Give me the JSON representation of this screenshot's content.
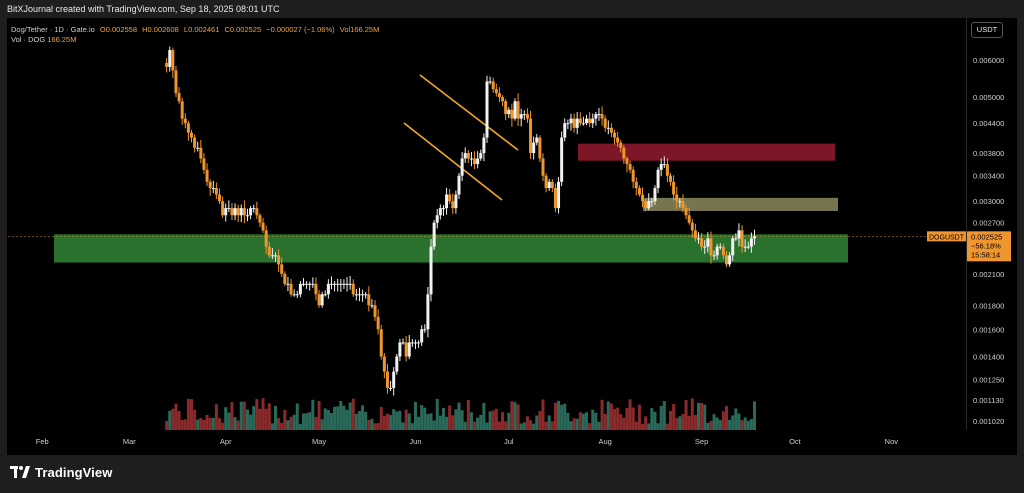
{
  "header": {
    "credit": "BitXJournal created with TradingView.com, Sep 18, 2025 08:01 UTC"
  },
  "legend": {
    "symbol": "Dog/Tether · 1D · Gate.io",
    "open": "O0.002558",
    "high": "H0.002608",
    "low": "L0.002461",
    "close": "C0.002525",
    "change": "−0.000027 (−1.06%)",
    "vol": "Vol166.25M",
    "vol_label": "Vol · DOG",
    "vol_value": "166.25M"
  },
  "currency_button": "USDT",
  "price_badge": {
    "ticker": "DOGUSDT",
    "price": "0.002525",
    "change": "−56.18%",
    "countdown": "15:58:14"
  },
  "brand": {
    "name": "TradingView"
  },
  "colors": {
    "up": "#f2f2f2",
    "down": "#f0962e",
    "vol_up": "#2a6a5a",
    "vol_down": "#8a2a2a",
    "support": "#2e7d32",
    "resistance": "#8b1a2b",
    "mid_zone": "#8c8a5e",
    "channel": "#f5a623"
  },
  "chart_data": {
    "type": "candlestick",
    "scale": "log",
    "y_ticks": [
      "0.006000",
      "0.005000",
      "0.004400",
      "0.003800",
      "0.003400",
      "0.003000",
      "0.002700",
      "0.002100",
      "0.001800",
      "0.001600",
      "0.001400",
      "0.001250",
      "0.001130",
      "0.001020"
    ],
    "x_ticks": [
      "Feb",
      "Mar",
      "Apr",
      "May",
      "Jun",
      "Jul",
      "Aug",
      "Sep",
      "Oct",
      "Nov"
    ],
    "x_range": [
      "2025-01-21",
      "2025-11-25"
    ],
    "last_date": "2025-09-18",
    "closes": [
      0.0058,
      0.0063,
      0.0057,
      0.0051,
      0.0049,
      0.0045,
      0.0044,
      0.0042,
      0.0041,
      0.0039,
      0.0039,
      0.0037,
      0.0035,
      0.0033,
      0.0032,
      0.0032,
      0.0031,
      0.003,
      0.0028,
      0.0029,
      0.0029,
      0.0028,
      0.0029,
      0.0028,
      0.0029,
      0.0028,
      0.0028,
      0.0029,
      0.0029,
      0.0028,
      0.0027,
      0.0026,
      0.0024,
      0.0023,
      0.0023,
      0.0023,
      0.0022,
      0.0021,
      0.002,
      0.002,
      0.0019,
      0.0019,
      0.0019,
      0.002,
      0.002,
      0.002,
      0.002,
      0.002,
      0.0019,
      0.0018,
      0.0019,
      0.0019,
      0.002,
      0.002,
      0.002,
      0.002,
      0.002,
      0.002,
      0.002,
      0.002,
      0.0019,
      0.0019,
      0.0019,
      0.0019,
      0.0019,
      0.0018,
      0.0018,
      0.0017,
      0.0016,
      0.0014,
      0.0013,
      0.0012,
      0.0012,
      0.0013,
      0.0014,
      0.0015,
      0.0015,
      0.0014,
      0.0015,
      0.0015,
      0.0015,
      0.0015,
      0.0016,
      0.0016,
      0.0019,
      0.0024,
      0.0027,
      0.0028,
      0.0029,
      0.0029,
      0.0031,
      0.003,
      0.0029,
      0.0031,
      0.0034,
      0.0037,
      0.0038,
      0.0037,
      0.0037,
      0.0036,
      0.0037,
      0.0038,
      0.0041,
      0.0054,
      0.0054,
      0.0052,
      0.0051,
      0.005,
      0.0049,
      0.0046,
      0.0047,
      0.0045,
      0.0049,
      0.0045,
      0.0046,
      0.0046,
      0.0045,
      0.0038,
      0.004,
      0.0041,
      0.0037,
      0.0034,
      0.0032,
      0.0033,
      0.0032,
      0.0029,
      0.0033,
      0.0041,
      0.0044,
      0.0044,
      0.0045,
      0.0043,
      0.0045,
      0.0044,
      0.0044,
      0.0045,
      0.0044,
      0.0045,
      0.0046,
      0.0046,
      0.0045,
      0.0043,
      0.0043,
      0.0042,
      0.0041,
      0.004,
      0.0039,
      0.0037,
      0.0036,
      0.0035,
      0.0033,
      0.0032,
      0.0031,
      0.003,
      0.0029,
      0.003,
      0.003,
      0.0032,
      0.0035,
      0.0036,
      0.0036,
      0.0034,
      0.0033,
      0.0031,
      0.003,
      0.003,
      0.0029,
      0.0028,
      0.0027,
      0.0026,
      0.0025,
      0.0025,
      0.0024,
      0.0024,
      0.0025,
      0.0023,
      0.0023,
      0.0024,
      0.0024,
      0.0023,
      0.0022,
      0.0023,
      0.0025,
      0.0025,
      0.0026,
      0.0024,
      0.0024,
      0.0024,
      0.0025,
      0.002525
    ],
    "annotations": [
      {
        "label": "support-zone",
        "y_range": [
          0.00222,
          0.00255
        ]
      },
      {
        "label": "resistance-zone",
        "y_range": [
          0.00366,
          0.00398
        ]
      },
      {
        "label": "mid-zone",
        "y_range": [
          0.00286,
          0.00305
        ]
      }
    ],
    "grid": false
  }
}
